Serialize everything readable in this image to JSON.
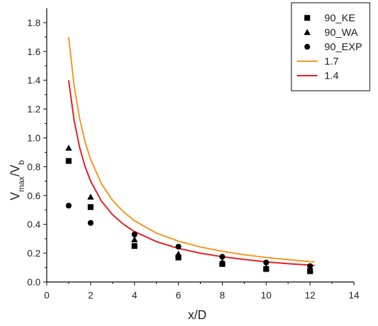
{
  "chart_data": {
    "type": "scatter",
    "xlabel": "x/D",
    "ylabel_main": "V",
    "ylabel_sub1": "max",
    "ylabel_mid": "/V",
    "ylabel_sub2": "b",
    "xlim": [
      0,
      14
    ],
    "ylim": [
      0,
      1.9
    ],
    "x_ticks": [
      0,
      2,
      4,
      6,
      8,
      10,
      12,
      14
    ],
    "y_ticks": [
      0.0,
      0.2,
      0.4,
      0.6,
      0.8,
      1.0,
      1.2,
      1.4,
      1.6,
      1.8
    ],
    "x_tick_labels": [
      "0",
      "2",
      "4",
      "6",
      "8",
      "10",
      "12",
      "14"
    ],
    "y_tick_labels": [
      "0.0",
      "0.2",
      "0.4",
      "0.6",
      "0.8",
      "1.0",
      "1.2",
      "1.4",
      "1.6",
      "1.8"
    ],
    "grid": false,
    "legend_position": "top-right",
    "series": [
      {
        "name": "90_KE",
        "marker": "square",
        "color": "#000000",
        "points": [
          [
            1,
            0.84
          ],
          [
            2,
            0.52
          ],
          [
            4,
            0.25
          ],
          [
            6,
            0.17
          ],
          [
            8,
            0.125
          ],
          [
            10,
            0.09
          ],
          [
            12,
            0.075
          ]
        ]
      },
      {
        "name": "90_WA",
        "marker": "triangle",
        "color": "#000000",
        "points": [
          [
            1,
            0.93
          ],
          [
            2,
            0.59
          ],
          [
            4,
            0.295
          ],
          [
            6,
            0.195
          ],
          [
            8,
            0.14
          ],
          [
            10,
            0.1
          ],
          [
            12,
            0.085
          ]
        ]
      },
      {
        "name": "90_EXP",
        "marker": "circle",
        "color": "#000000",
        "points": [
          [
            1,
            0.53
          ],
          [
            2,
            0.41
          ],
          [
            4,
            0.33
          ],
          [
            6,
            0.245
          ],
          [
            8,
            0.175
          ],
          [
            10,
            0.135
          ],
          [
            12,
            0.11
          ]
        ]
      },
      {
        "name": "1.7",
        "line": true,
        "color": "#f7941d",
        "points": [
          [
            1,
            1.7
          ],
          [
            1.25,
            1.36
          ],
          [
            1.5,
            1.133
          ],
          [
            1.75,
            0.971
          ],
          [
            2,
            0.85
          ],
          [
            2.5,
            0.68
          ],
          [
            3,
            0.567
          ],
          [
            3.5,
            0.486
          ],
          [
            4,
            0.425
          ],
          [
            5,
            0.34
          ],
          [
            6,
            0.283
          ],
          [
            7,
            0.243
          ],
          [
            8,
            0.213
          ],
          [
            9,
            0.189
          ],
          [
            10,
            0.17
          ],
          [
            11,
            0.155
          ],
          [
            12.2,
            0.139
          ]
        ]
      },
      {
        "name": "1.4",
        "line": true,
        "color": "#e8191f",
        "points": [
          [
            1,
            1.4
          ],
          [
            1.25,
            1.12
          ],
          [
            1.5,
            0.933
          ],
          [
            1.75,
            0.8
          ],
          [
            2,
            0.7
          ],
          [
            2.5,
            0.56
          ],
          [
            3,
            0.467
          ],
          [
            3.5,
            0.4
          ],
          [
            4,
            0.35
          ],
          [
            5,
            0.28
          ],
          [
            6,
            0.233
          ],
          [
            7,
            0.2
          ],
          [
            8,
            0.175
          ],
          [
            9,
            0.156
          ],
          [
            10,
            0.14
          ],
          [
            11,
            0.127
          ],
          [
            12.2,
            0.115
          ]
        ]
      }
    ]
  }
}
